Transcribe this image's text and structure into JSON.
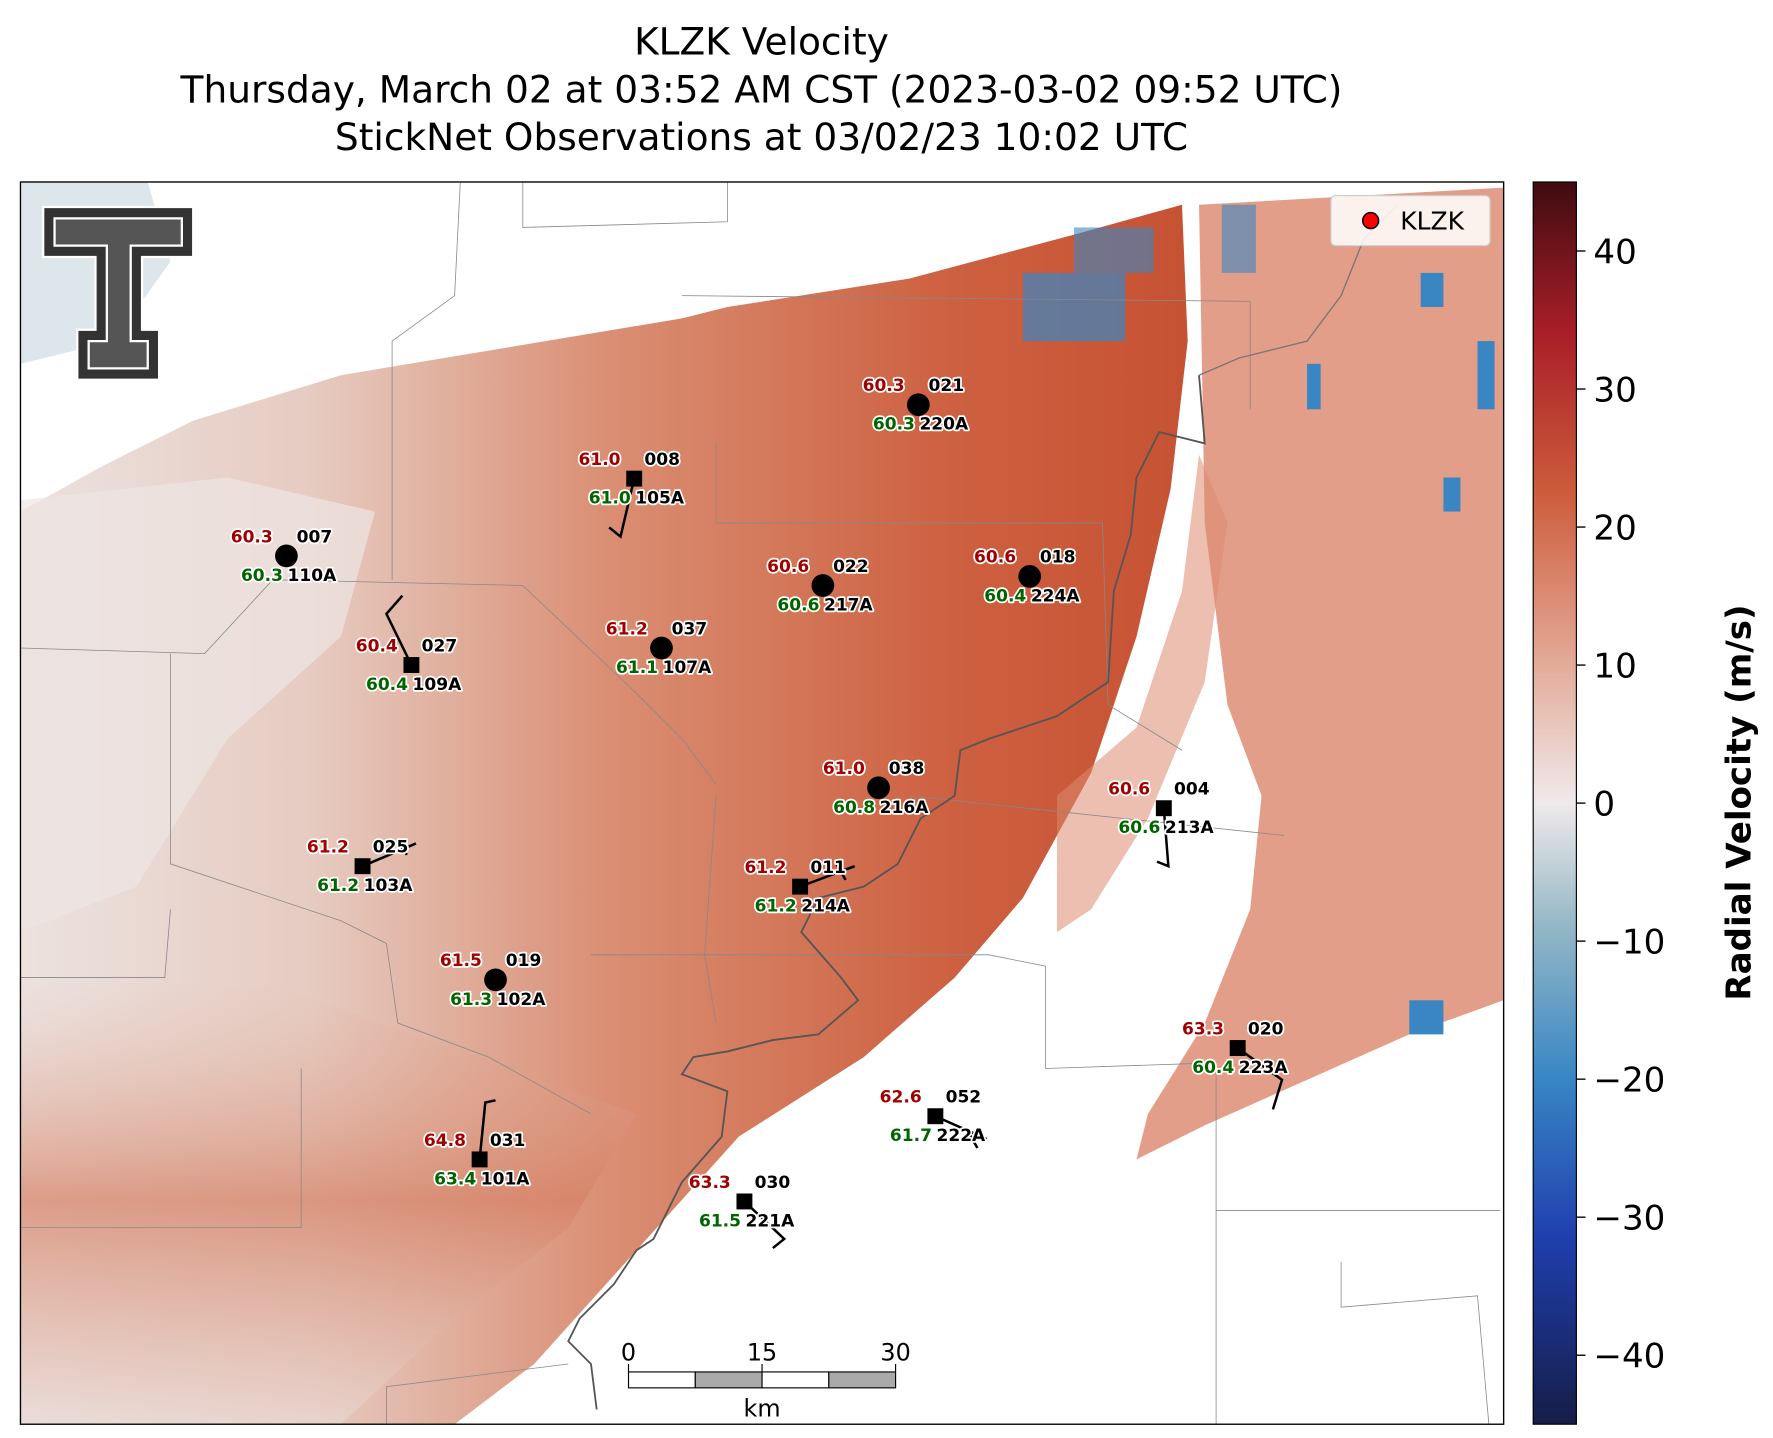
{
  "header": {
    "title": "KLZK Velocity",
    "subtitle": "Thursday, March 02 at 03:52 AM CST (2023-03-02 09:52 UTC)",
    "subtitle2": "StickNet Observations at 03/02/23 10:02 UTC"
  },
  "legend": {
    "label": "KLZK",
    "color": "#ff0000",
    "corner": "upper right"
  },
  "colorbar": {
    "label": "Radial Velocity (m/s)",
    "lim": [
      -45,
      45
    ],
    "ticks": [
      {
        "value": -40,
        "label": "−40"
      },
      {
        "value": -30,
        "label": "−30"
      },
      {
        "value": -20,
        "label": "−20"
      },
      {
        "value": -10,
        "label": "−10"
      },
      0,
      10,
      20,
      30,
      40
    ]
  },
  "scalebar": {
    "ticks": [
      0,
      15,
      30
    ],
    "unit": "km"
  },
  "stations": [
    {
      "temp": "60.3",
      "dewpoint": "60.3",
      "id": "021",
      "id2": "220A",
      "marker": "circle"
    },
    {
      "temp": "61.0",
      "dewpoint": "61.0",
      "id": "008",
      "id2": "105A",
      "marker": "square"
    },
    {
      "temp": "60.3",
      "dewpoint": "60.3",
      "id": "007",
      "id2": "110A",
      "marker": "circle"
    },
    {
      "temp": "60.6",
      "dewpoint": "60.6",
      "id": "022",
      "id2": "217A",
      "marker": "circle"
    },
    {
      "temp": "60.6",
      "dewpoint": "60.4",
      "id": "018",
      "id2": "224A",
      "marker": "circle"
    },
    {
      "temp": "61.2",
      "dewpoint": "61.1",
      "id": "037",
      "id2": "107A",
      "marker": "circle"
    },
    {
      "temp": "60.4",
      "dewpoint": "60.4",
      "id": "027",
      "id2": "109A",
      "marker": "square"
    },
    {
      "temp": "61.0",
      "dewpoint": "60.8",
      "id": "038",
      "id2": "216A",
      "marker": "circle"
    },
    {
      "temp": "60.6",
      "dewpoint": "60.6",
      "id": "004",
      "id2": "213A",
      "marker": "square"
    },
    {
      "temp": "61.2",
      "dewpoint": "61.2",
      "id": "025",
      "id2": "103A",
      "marker": "square"
    },
    {
      "temp": "61.2",
      "dewpoint": "61.2",
      "id": "011",
      "id2": "214A",
      "marker": "square"
    },
    {
      "temp": "61.5",
      "dewpoint": "61.3",
      "id": "019",
      "id2": "102A",
      "marker": "circle"
    },
    {
      "temp": "63.3",
      "dewpoint": "60.4",
      "id": "020",
      "id2": "223A",
      "marker": "square"
    },
    {
      "temp": "62.6",
      "dewpoint": "61.7",
      "id": "052",
      "id2": "222A",
      "marker": "square"
    },
    {
      "temp": "64.8",
      "dewpoint": "63.4",
      "id": "031",
      "id2": "101A",
      "marker": "square"
    },
    {
      "temp": "63.3",
      "dewpoint": "61.5",
      "id": "030",
      "id2": "221A",
      "marker": "square"
    }
  ]
}
